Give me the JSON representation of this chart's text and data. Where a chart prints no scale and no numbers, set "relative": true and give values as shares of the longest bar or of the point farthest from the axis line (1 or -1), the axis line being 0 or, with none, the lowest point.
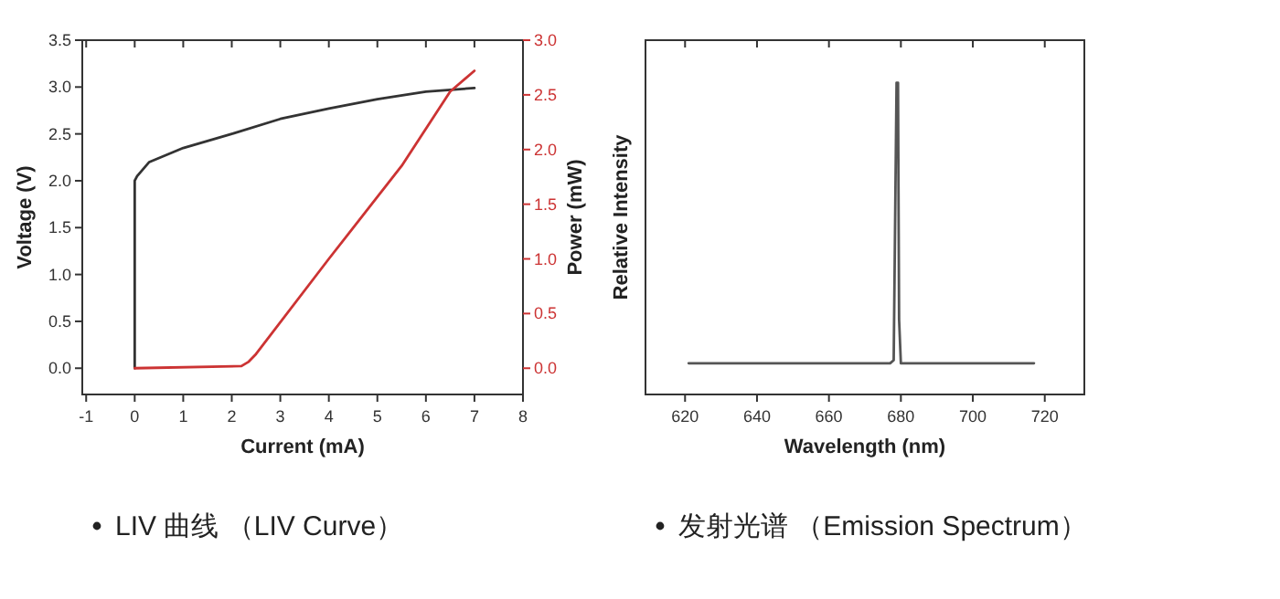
{
  "chart_data": [
    {
      "type": "line",
      "xlabel": "Current (mA)",
      "ylabel": "Voltage (V)",
      "y2label": "Power (mW)",
      "annotations": [
        "LIV 曲线 （LIV Curve）"
      ],
      "xlim": [
        -1.08,
        8
      ],
      "xticks": [
        -1,
        0,
        1,
        2,
        3,
        4,
        5,
        6,
        7,
        8
      ],
      "ylim": [
        -0.28,
        3.5
      ],
      "yticks": [
        {
          "value": 0,
          "label": "0.0"
        },
        {
          "value": 0.5,
          "label": "0.5"
        },
        {
          "value": 1,
          "label": "1.0"
        },
        {
          "value": 1.5,
          "label": "1.5"
        },
        {
          "value": 2,
          "label": "2.0"
        },
        {
          "value": 2.5,
          "label": "2.5"
        },
        {
          "value": 3,
          "label": "3.0"
        },
        {
          "value": 3.5,
          "label": "3.5"
        }
      ],
      "y2lim": [
        -0.24,
        3.0
      ],
      "y2ticks": [
        {
          "value": 0,
          "label": "0.0"
        },
        {
          "value": 0.5,
          "label": "0.5"
        },
        {
          "value": 1,
          "label": "1.0"
        },
        {
          "value": 1.5,
          "label": "1.5"
        },
        {
          "value": 2,
          "label": "2.0"
        },
        {
          "value": 2.5,
          "label": "2.5"
        },
        {
          "value": 3,
          "label": "3.0"
        }
      ],
      "series": [
        {
          "color": "#333333",
          "x": [
            0,
            0,
            0.05,
            0.3,
            1,
            2,
            3,
            4,
            5,
            6,
            7
          ],
          "values": [
            0,
            2.0,
            2.05,
            2.2,
            2.35,
            2.5,
            2.66,
            2.77,
            2.87,
            2.95,
            2.99
          ]
        },
        {
          "color": "#cc3333",
          "axis": "y2",
          "x": [
            0,
            2.2,
            2.35,
            2.5,
            4,
            5.5,
            6.5,
            7
          ],
          "values": [
            0,
            0.02,
            0.06,
            0.13,
            1.0,
            1.85,
            2.53,
            2.72
          ]
        }
      ]
    },
    {
      "type": "line",
      "xlabel": "Wavelength (nm)",
      "ylabel": "Relative Intensity",
      "relative": true,
      "annotations": [
        "发射光谱 （Emission Spectrum）"
      ],
      "xlim": [
        609,
        731
      ],
      "xticks": [
        620,
        640,
        660,
        680,
        700,
        720
      ],
      "series": [
        {
          "color": "#555555",
          "x": [
            621,
            677,
            678,
            678.5,
            678.8,
            679.2,
            679.5,
            680,
            717
          ],
          "values": [
            0.1,
            0.1,
            0.11,
            0.67,
            1.0,
            1.0,
            0.24,
            0.1,
            0.1
          ]
        }
      ]
    }
  ]
}
